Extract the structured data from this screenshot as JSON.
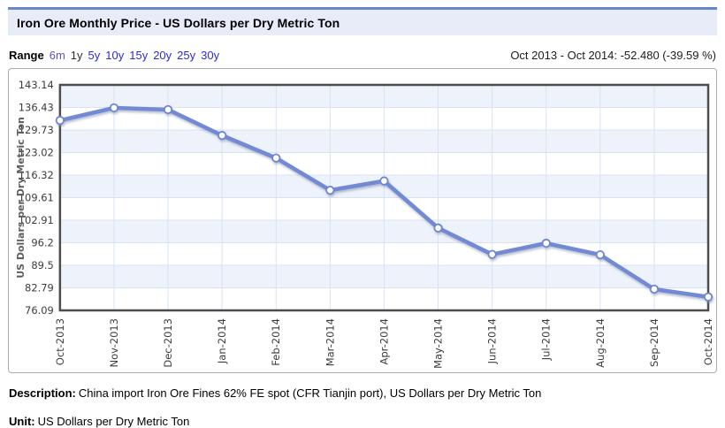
{
  "header": {
    "title": "Iron Ore Monthly Price - US Dollars per Dry Metric Ton"
  },
  "range_bar": {
    "label": "Range",
    "options": [
      {
        "label": "6m",
        "state": "visited"
      },
      {
        "label": "1y",
        "state": "selected"
      },
      {
        "label": "5y",
        "state": "link"
      },
      {
        "label": "10y",
        "state": "link"
      },
      {
        "label": "15y",
        "state": "link"
      },
      {
        "label": "20y",
        "state": "link"
      },
      {
        "label": "25y",
        "state": "link"
      },
      {
        "label": "30y",
        "state": "link"
      }
    ],
    "summary": "Oct 2013 - Oct 2014: -52.480 (-39.59 %)"
  },
  "chart_data": {
    "type": "line",
    "title": "Iron Ore Monthly Price",
    "xlabel": "",
    "ylabel": "US Dollars per Dry Metric Ton",
    "categories": [
      "Oct-2013",
      "Nov-2013",
      "Dec-2013",
      "Jan-2014",
      "Feb-2014",
      "Mar-2014",
      "Apr-2014",
      "May-2014",
      "Jun-2014",
      "Jul-2014",
      "Aug-2014",
      "Sep-2014",
      "Oct-2014"
    ],
    "values": [
      132.58,
      136.32,
      135.79,
      128.12,
      121.4,
      111.82,
      114.58,
      100.6,
      92.74,
      96.07,
      92.63,
      82.41,
      80.1
    ],
    "y_ticks": [
      143.14,
      136.43,
      129.73,
      123.02,
      116.32,
      109.61,
      102.91,
      96.2,
      89.5,
      82.79,
      76.09
    ],
    "ylim": [
      76.09,
      143.14
    ],
    "grid": true,
    "legend": "none",
    "marker": "circle-white",
    "colors": {
      "line": "#7289d3",
      "marker_fill": "#ffffff",
      "marker_stroke": "#6e86d2",
      "stripe": "#eef2fb",
      "grid": "#d9e2f4",
      "plot_border": "#4d4d4d"
    }
  },
  "footer": {
    "description_label": "Description:",
    "description": "China import Iron Ore Fines 62% FE spot (CFR Tianjin port), US Dollars per Dry Metric Ton",
    "unit_label": "Unit:",
    "unit": "US Dollars per Dry Metric Ton"
  }
}
